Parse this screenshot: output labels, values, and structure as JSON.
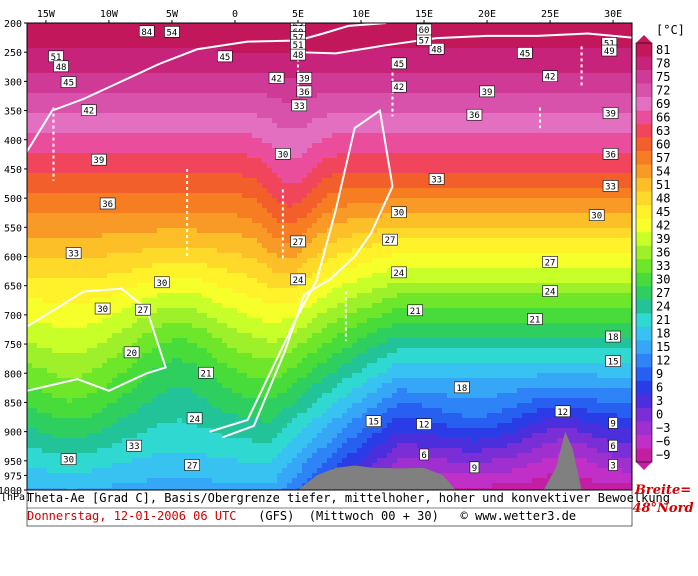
{
  "chart_data": {
    "type": "heatmap",
    "variable": "Theta-Ae",
    "x_ticks": [
      "15W",
      "10W",
      "5W",
      "0",
      "5E",
      "10E",
      "15E",
      "20E",
      "25E",
      "30E"
    ],
    "y_ticks": [
      "200",
      "250",
      "300",
      "350",
      "400",
      "450",
      "500",
      "550",
      "600",
      "650",
      "700",
      "750",
      "800",
      "850",
      "900",
      "950",
      "975",
      "1000"
    ],
    "y_unit_label": "[hPa]",
    "colorbar_unit": "[°C]",
    "colorbar_levels": [
      "81",
      "78",
      "75",
      "72",
      "69",
      "66",
      "63",
      "60",
      "57",
      "54",
      "51",
      "48",
      "45",
      "42",
      "39",
      "36",
      "33",
      "30",
      "27",
      "24",
      "21",
      "18",
      "15",
      "12",
      "9",
      "6",
      "3",
      "0",
      "−3",
      "−6",
      "−9"
    ],
    "colorbar_colors": [
      "#c2185b",
      "#c7237a",
      "#cf3a96",
      "#d852ac",
      "#e26fbf",
      "#ea4d9b",
      "#f0455a",
      "#f25f2a",
      "#f77d22",
      "#fa9a26",
      "#fdbf28",
      "#ffd92a",
      "#fff12a",
      "#f6ff2a",
      "#c8ff28",
      "#9ef02a",
      "#6ee62a",
      "#48dc3a",
      "#2ecf5f",
      "#23c39a",
      "#2fd8d0",
      "#37c2f2",
      "#36a6f6",
      "#2e84f6",
      "#275ff0",
      "#2a3ce6",
      "#4b2fdc",
      "#7a2fd6",
      "#a02fd0",
      "#c02fc8",
      "#c41fa3"
    ],
    "isotherm_labels": [
      [
        "51",
        -14.2,
        258
      ],
      [
        "48",
        -13.8,
        275
      ],
      [
        "45",
        -13.2,
        302
      ],
      [
        "42",
        -11.6,
        350
      ],
      [
        "39",
        -10.8,
        435
      ],
      [
        "36",
        -10.1,
        510
      ],
      [
        "33",
        -12.8,
        595
      ],
      [
        "30",
        -5.8,
        645
      ],
      [
        "30",
        -10.5,
        690
      ],
      [
        "27",
        -7.3,
        692
      ],
      [
        "20",
        -8.2,
        765
      ],
      [
        "30",
        -13.2,
        948
      ],
      [
        "33",
        -8.0,
        925
      ],
      [
        "27",
        -3.4,
        958
      ],
      [
        "24",
        -3.2,
        878
      ],
      [
        "21",
        -2.3,
        800
      ],
      [
        "24",
        5.0,
        640
      ],
      [
        "27",
        5.0,
        575
      ],
      [
        "30",
        3.8,
        425
      ],
      [
        "33",
        5.1,
        342
      ],
      [
        "36",
        5.5,
        318
      ],
      [
        "39",
        5.5,
        295
      ],
      [
        "42",
        3.3,
        295
      ],
      [
        "45",
        -0.8,
        258
      ],
      [
        "54",
        -5.0,
        216
      ],
      [
        "45",
        13.0,
        270
      ],
      [
        "42",
        13.0,
        310
      ],
      [
        "39",
        20.0,
        318
      ],
      [
        "36",
        19.0,
        358
      ],
      [
        "33",
        16.0,
        468
      ],
      [
        "30",
        13.0,
        525
      ],
      [
        "27",
        12.3,
        572
      ],
      [
        "24",
        13.0,
        628
      ],
      [
        "21",
        14.3,
        693
      ],
      [
        "18",
        18.0,
        825
      ],
      [
        "15",
        11.0,
        883
      ],
      [
        "12",
        15.0,
        888
      ],
      [
        "9",
        19.0,
        962
      ],
      [
        "12",
        26.0,
        866
      ],
      [
        "9",
        30.0,
        886
      ],
      [
        "6",
        30.0,
        925
      ],
      [
        "3",
        30.0,
        958
      ],
      [
        "6",
        15.0,
        940
      ],
      [
        "15",
        30.0,
        780
      ],
      [
        "18",
        30.0,
        738
      ],
      [
        "21",
        23.8,
        708
      ],
      [
        "24",
        25.0,
        660
      ],
      [
        "27",
        25.0,
        610
      ],
      [
        "30",
        28.7,
        530
      ],
      [
        "33",
        29.8,
        480
      ],
      [
        "36",
        29.8,
        425
      ],
      [
        "39",
        29.8,
        355
      ],
      [
        "42",
        25.0,
        292
      ],
      [
        "45",
        23.0,
        252
      ],
      [
        "48",
        16.0,
        245
      ],
      [
        "51",
        29.7,
        235
      ],
      [
        "49",
        29.7,
        248
      ],
      [
        "57",
        15.0,
        230
      ],
      [
        "60",
        15.0,
        212
      ],
      [
        "63",
        5.0,
        205
      ],
      [
        "60",
        5.0,
        215
      ],
      [
        "57",
        5.0,
        225
      ],
      [
        "51",
        5.0,
        238
      ],
      [
        "48",
        5.0,
        255
      ],
      [
        "84",
        -7.0,
        215
      ]
    ]
  },
  "info": {
    "line1": "Theta-Ae [Grad C], Basis/Obergrenze tiefer, mittelhoher, hoher und konvektiver Bewoelkung",
    "date": "Donnerstag, 12-01-2006  06 UTC",
    "model": "(GFS)",
    "run": "(Mittwoch 00 + 30)",
    "credit": "© www.wetter3.de"
  },
  "badge": {
    "line1": "Breite=",
    "line2": "48°Nord"
  }
}
